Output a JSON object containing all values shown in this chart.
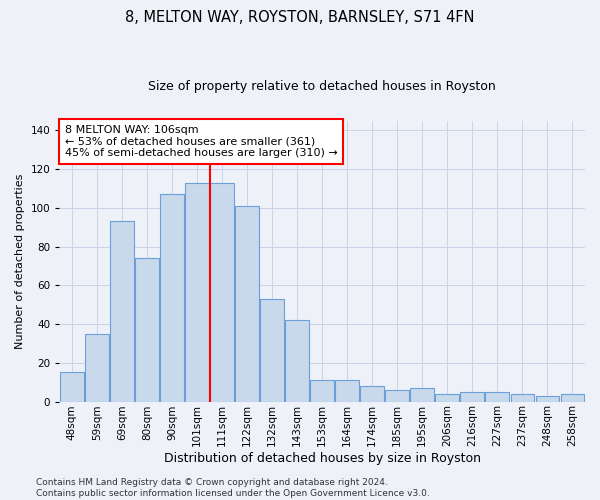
{
  "title": "8, MELTON WAY, ROYSTON, BARNSLEY, S71 4FN",
  "subtitle": "Size of property relative to detached houses in Royston",
  "xlabel": "Distribution of detached houses by size in Royston",
  "ylabel": "Number of detached properties",
  "categories": [
    "48sqm",
    "59sqm",
    "69sqm",
    "80sqm",
    "90sqm",
    "101sqm",
    "111sqm",
    "122sqm",
    "132sqm",
    "143sqm",
    "153sqm",
    "164sqm",
    "174sqm",
    "185sqm",
    "195sqm",
    "206sqm",
    "216sqm",
    "227sqm",
    "237sqm",
    "248sqm",
    "258sqm"
  ],
  "values": [
    15,
    35,
    93,
    74,
    107,
    113,
    113,
    101,
    53,
    42,
    11,
    11,
    8,
    6,
    7,
    4,
    5,
    5,
    4,
    3,
    4
  ],
  "bar_color": "#c9d9ec",
  "bar_edge_color": "#6a9fd8",
  "vline_x": 6.0,
  "vline_color": "red",
  "ylim": [
    0,
    145
  ],
  "yticks": [
    0,
    20,
    40,
    60,
    80,
    100,
    120,
    140
  ],
  "annotation_text": "8 MELTON WAY: 106sqm\n← 53% of detached houses are smaller (361)\n45% of semi-detached houses are larger (310) →",
  "annotation_box_color": "white",
  "annotation_box_edge_color": "red",
  "footer_text": "Contains HM Land Registry data © Crown copyright and database right 2024.\nContains public sector information licensed under the Open Government Licence v3.0.",
  "grid_color": "#c8d4e8",
  "background_color": "#eef2f8",
  "title_fontsize": 10.5,
  "subtitle_fontsize": 9,
  "xlabel_fontsize": 9,
  "ylabel_fontsize": 8,
  "tick_fontsize": 7.5,
  "annotation_fontsize": 8,
  "footer_fontsize": 6.5
}
